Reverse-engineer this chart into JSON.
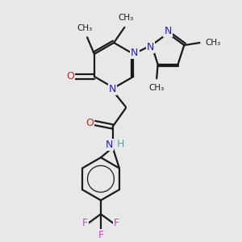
{
  "bg_color": "#e8e8e8",
  "bond_color": "#1a1a1a",
  "N_color": "#2020cc",
  "O_color": "#cc2020",
  "F_color": "#cc44cc",
  "H_color": "#44aaaa",
  "C_color": "#1a1a1a",
  "line_width": 1.6,
  "font_size": 9,
  "figsize": [
    3.0,
    3.0
  ],
  "dpi": 100,
  "xlim": [
    0,
    10
  ],
  "ylim": [
    0,
    10
  ]
}
